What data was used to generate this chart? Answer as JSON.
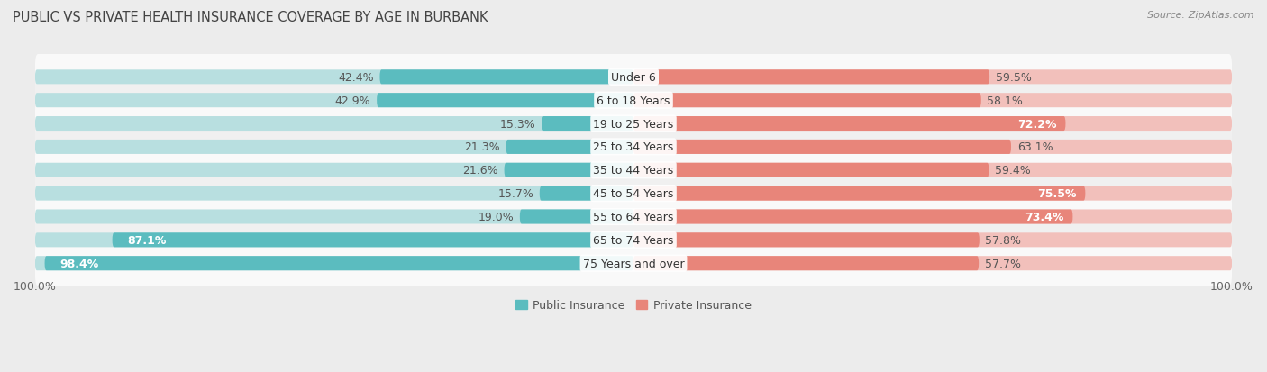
{
  "title": "PUBLIC VS PRIVATE HEALTH INSURANCE COVERAGE BY AGE IN BURBANK",
  "source": "Source: ZipAtlas.com",
  "categories": [
    "Under 6",
    "6 to 18 Years",
    "19 to 25 Years",
    "25 to 34 Years",
    "35 to 44 Years",
    "45 to 54 Years",
    "55 to 64 Years",
    "65 to 74 Years",
    "75 Years and over"
  ],
  "public_values": [
    42.4,
    42.9,
    15.3,
    21.3,
    21.6,
    15.7,
    19.0,
    87.1,
    98.4
  ],
  "private_values": [
    59.5,
    58.1,
    72.2,
    63.1,
    59.4,
    75.5,
    73.4,
    57.8,
    57.7
  ],
  "public_color": "#5bbcbf",
  "public_color_light": "#b8dfe0",
  "private_color": "#e8857a",
  "private_color_light": "#f2c0bb",
  "bg_color": "#ececec",
  "row_bg_even": "#f9f9f9",
  "row_bg_odd": "#f0f0f0",
  "label_fontsize": 9.0,
  "title_fontsize": 10.5,
  "source_fontsize": 8.0,
  "max_value": 100.0,
  "bar_height": 0.62,
  "legend_labels": [
    "Public Insurance",
    "Private Insurance"
  ],
  "pub_white_threshold": 50,
  "priv_white_threshold": 65
}
